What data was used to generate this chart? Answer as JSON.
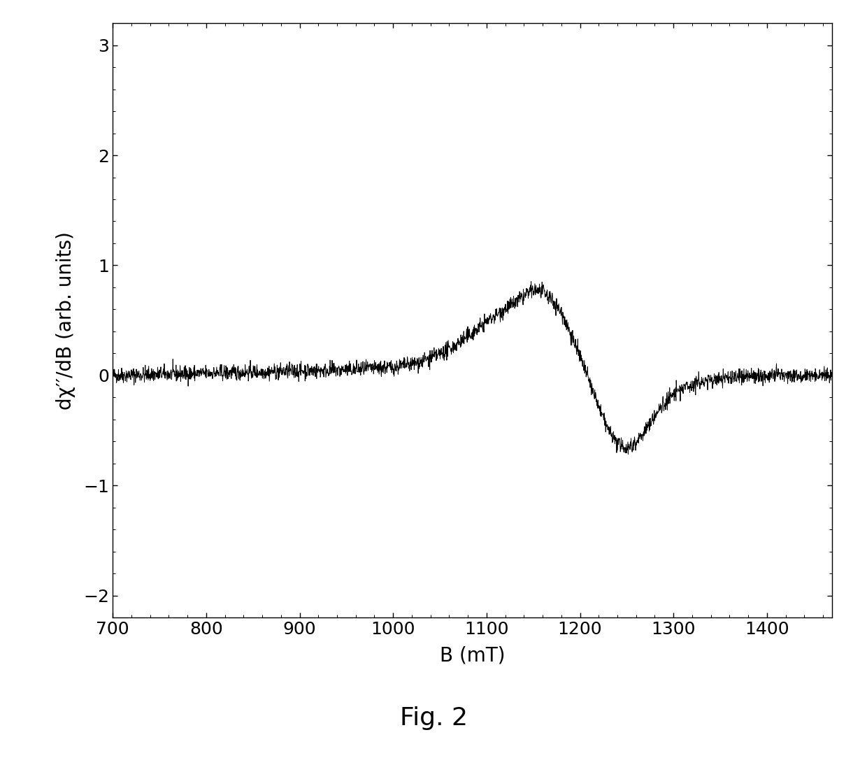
{
  "xlim": [
    700,
    1470
  ],
  "ylim": [
    -2.2,
    3.2
  ],
  "xticks": [
    700,
    800,
    900,
    1000,
    1100,
    1200,
    1300,
    1400
  ],
  "yticks": [
    -2,
    -1,
    0,
    1,
    2,
    3
  ],
  "xlabel": "B (mT)",
  "ylabel": "dχ′′/dB (arb. units)",
  "fig_label": "Fig. 2",
  "line_color": "#000000",
  "background_color": "#ffffff",
  "noise_level": 0.035,
  "seed": 42,
  "x_start": 700,
  "x_end": 1470,
  "n_points": 2500,
  "label_fontsize": 20,
  "tick_fontsize": 18,
  "fig_label_fontsize": 26
}
